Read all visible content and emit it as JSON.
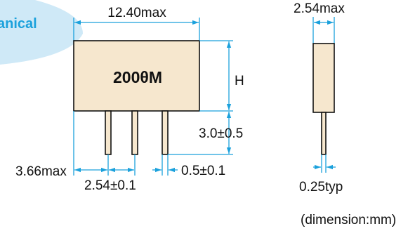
{
  "section_title": "anical",
  "marking": "200θM",
  "dimensions": {
    "body_width": "12.40max",
    "body_thickness": "2.54max",
    "height": "H",
    "lead_length": "3.0±0.5",
    "edge_to_lead": "3.66max",
    "lead_pitch": "2.54±0.1",
    "lead_width": "0.5±0.1",
    "lead_thickness": "0.25typ"
  },
  "units_note": "(dimension:mm)",
  "colors": {
    "accent": "#1ba1dc",
    "section_text": "#1ba1dc",
    "body_fill": "#f6e7ce",
    "title_tab": "#cfe9f7"
  }
}
